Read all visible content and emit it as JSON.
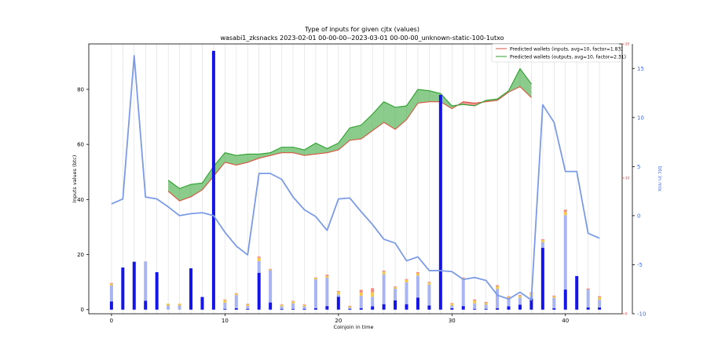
{
  "chart_data": {
    "type": "bar",
    "title": "Type of inputs for given cjtx (values)",
    "subtitle": "wasabi1_zksnacks 2023-02-01 00-00-00--2023-03-01 00-00-00_unknown-static-100-1utxo",
    "xlabel": "Coinjoin in time",
    "ylabel": "Inputs values (btc)",
    "y2label": "btc in mix",
    "xlim": [
      -2,
      45
    ],
    "ylim": [
      -1.5,
      96.5
    ],
    "y2lim": [
      -10,
      17.5
    ],
    "grid": "vertical",
    "legend_position": "top-right",
    "xticks": [
      0,
      10,
      20,
      30,
      40
    ],
    "yticks": [
      0,
      20,
      40,
      60,
      80
    ],
    "y2ticks": [
      -10,
      -5,
      0,
      5,
      10,
      15
    ],
    "y3ticks": [
      "0",
      "10",
      "20"
    ],
    "colors": {
      "dark_blue": "#1515e6",
      "light_blue": "#a9b4f2",
      "gold": "#f2c94c",
      "salmon": "#f28c82",
      "line": "#7b9be6",
      "pred_inputs": "#d9533f",
      "pred_outputs": "#2ca02c"
    },
    "stacked_bars": {
      "x": [
        0,
        1,
        2,
        3,
        4,
        5,
        6,
        7,
        8,
        9,
        10,
        11,
        12,
        13,
        14,
        15,
        16,
        17,
        18,
        19,
        20,
        21,
        22,
        23,
        24,
        25,
        26,
        27,
        28,
        29,
        30,
        31,
        32,
        33,
        34,
        35,
        36,
        37,
        38,
        39,
        40,
        41,
        42,
        43
      ],
      "series": [
        {
          "key": "dark_blue",
          "values": [
            3.0,
            15.3,
            17.4,
            3.2,
            13.6,
            0,
            0,
            15.0,
            4.6,
            94.0,
            0.3,
            0.5,
            0.3,
            13.4,
            2.6,
            0.3,
            0.3,
            0.3,
            0.5,
            1.3,
            4.7,
            0.3,
            0.5,
            1.2,
            2.0,
            3.4,
            2.0,
            4.4,
            1.5,
            78.0,
            0.5,
            1.3,
            0.3,
            0.3,
            0.5,
            1.2,
            1.8,
            4.0,
            22.5,
            0.5,
            7.3,
            12.2,
            0.8,
            0.8
          ]
        },
        {
          "key": "light_blue",
          "values": [
            5.8,
            0,
            0,
            14.3,
            0,
            1.5,
            1.5,
            0,
            0,
            0,
            2.2,
            4.8,
            1.0,
            4.2,
            11.7,
            0.9,
            2.0,
            0.9,
            10.5,
            10.3,
            0.8,
            0.5,
            4.5,
            3.5,
            10.8,
            4.2,
            7.9,
            8.0,
            7.6,
            0,
            1.0,
            9.5,
            2.0,
            1.5,
            7.0,
            2.8,
            2.6,
            0.9,
            2.0,
            3.8,
            27.0,
            0,
            6.5,
            2.8
          ]
        },
        {
          "key": "gold",
          "values": [
            0.6,
            0,
            0,
            0,
            0,
            0.7,
            0.7,
            0,
            0,
            0,
            1.0,
            0.5,
            0.5,
            1.2,
            0.3,
            0.5,
            0.7,
            0.5,
            0.5,
            0.6,
            1.0,
            0.4,
            1.2,
            1.6,
            1.0,
            0.5,
            0.9,
            0.8,
            0.7,
            0,
            0.7,
            0.6,
            1.0,
            0.6,
            1.0,
            0.6,
            0.6,
            0.9,
            0.8,
            0.5,
            1.2,
            0,
            0,
            0.9
          ]
        },
        {
          "key": "salmon",
          "values": [
            0.3,
            0,
            0,
            0,
            0,
            0,
            0,
            0,
            0,
            0,
            0.2,
            0.2,
            0.3,
            0.5,
            0.2,
            0.2,
            0.2,
            0.2,
            0.2,
            0.5,
            0.3,
            0.2,
            1.0,
            1.5,
            0.4,
            0.3,
            0.3,
            0.4,
            0.3,
            0,
            0.2,
            0.3,
            0.4,
            0.4,
            0.4,
            0.3,
            0.3,
            0.5,
            0.3,
            0.3,
            0.8,
            0,
            0.4,
            0.4
          ]
        }
      ]
    },
    "btc_in_mix": {
      "x": [
        0,
        1,
        2,
        3,
        4,
        5,
        6,
        7,
        8,
        9,
        10,
        11,
        12,
        13,
        14,
        15,
        16,
        17,
        18,
        19,
        20,
        21,
        22,
        23,
        24,
        25,
        26,
        27,
        28,
        29,
        30,
        31,
        32,
        33,
        34,
        35,
        36,
        37,
        38,
        39,
        40,
        41,
        42,
        43
      ],
      "values": [
        1.2,
        1.7,
        16.3,
        1.9,
        1.7,
        0.9,
        0.0,
        0.2,
        0.3,
        0.0,
        -1.7,
        -3.1,
        -4.0,
        4.3,
        4.3,
        3.7,
        1.9,
        0.6,
        -0.1,
        -1.5,
        1.7,
        1.8,
        0.4,
        -0.9,
        -2.4,
        -2.8,
        -4.6,
        -4.2,
        -5.6,
        -5.6,
        -5.7,
        -6.5,
        -6.3,
        -6.6,
        -8.1,
        -8.5,
        -7.8,
        -8.6,
        11.3,
        9.5,
        4.5,
        4.5,
        -1.8,
        -2.3
      ]
    },
    "predicted_wallets": [
      {
        "name": "Predicted wallets (inputs, avg=10, factor=1.83)",
        "x": [
          5,
          6,
          7,
          8,
          9,
          10,
          11,
          12,
          13,
          14,
          15,
          16,
          17,
          18,
          19,
          20,
          21,
          22,
          23,
          24,
          25,
          26,
          27,
          28,
          29,
          30,
          31,
          32,
          33,
          34,
          35,
          36,
          37
        ],
        "values": [
          43,
          39.5,
          41,
          43.5,
          48.5,
          53.5,
          52.5,
          53.5,
          55,
          56,
          57,
          57,
          56,
          56.5,
          57,
          58,
          61.5,
          62,
          65,
          68,
          65.5,
          69,
          75,
          75.5,
          75.5,
          73,
          75.5,
          75,
          75.5,
          76,
          79,
          81,
          77
        ]
      },
      {
        "name": "Predicted wallets (outputs, avg=10, factor=2.31)",
        "x": [
          5,
          6,
          7,
          8,
          9,
          10,
          11,
          12,
          13,
          14,
          15,
          16,
          17,
          18,
          19,
          20,
          21,
          22,
          23,
          24,
          25,
          26,
          27,
          28,
          29,
          30,
          31,
          32,
          33,
          34,
          35,
          36,
          37
        ],
        "values": [
          47,
          44,
          45.5,
          46,
          52,
          57,
          56,
          56.5,
          56.5,
          57,
          59,
          59,
          58,
          60.5,
          58.5,
          60.5,
          66,
          67,
          71,
          75.5,
          73.5,
          74,
          80,
          79.5,
          78.5,
          74,
          74.5,
          74,
          76,
          76.5,
          79.5,
          87.5,
          82
        ]
      }
    ]
  }
}
